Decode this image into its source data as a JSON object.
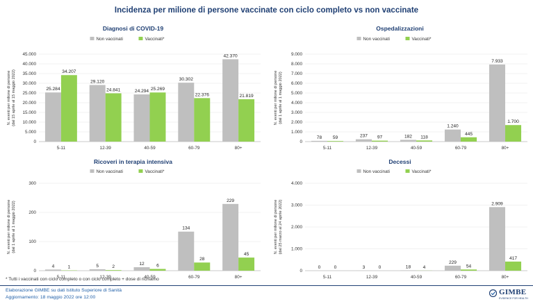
{
  "title": "Incidenza per milione di persone vaccinate con ciclo completo vs non vaccinate",
  "colors": {
    "non_vaccinati": "#bfbfbf",
    "vaccinati": "#92d050",
    "title": "#1f3f73",
    "footer": "#1f5fa8"
  },
  "footnote": "* Tutti i vaccinati con ciclo completo o con ciclo completo + dose di richiamo",
  "footer": {
    "credit": "Elaborazione GIMBE su dati Istituto Superiore di Sanità",
    "updated": "Aggiornamento: 18 maggio 2022 ore 12:00",
    "logo_name": "GIMBE",
    "logo_tagline": "EVIDENCE FOR HEALTH"
  },
  "chart_data": [
    {
      "type": "bar",
      "title": "Diagnosi di COVID-19",
      "ylabel": [
        "N. eventi per milione di persone",
        "(dal 15 aprile al 15 maggio 2022)"
      ],
      "categories": [
        "5-11",
        "12-39",
        "40-59",
        "60-79",
        "80+"
      ],
      "ylim": [
        0,
        45000
      ],
      "yticks": [
        0,
        5000,
        10000,
        15000,
        20000,
        25000,
        30000,
        35000,
        40000,
        45000
      ],
      "ytick_labels": [
        "0",
        "5.000",
        "10.000",
        "15.000",
        "20.000",
        "25.000",
        "30.000",
        "35.000",
        "40.000",
        "45.000"
      ],
      "legend_position": "top",
      "series": [
        {
          "name": "Non vaccinati",
          "values": [
            25284,
            29120,
            24294,
            30302,
            42370
          ],
          "labels": [
            "25.284",
            "29.120",
            "24.294",
            "30.302",
            "42.370"
          ]
        },
        {
          "name": "Vaccinati*",
          "values": [
            34207,
            24841,
            25269,
            22376,
            21819
          ],
          "labels": [
            "34.207",
            "24.841",
            "25.269",
            "22.376",
            "21.819"
          ]
        }
      ]
    },
    {
      "type": "bar",
      "title": "Ospedalizzazioni",
      "ylabel": [
        "N. eventi per milione di persone",
        "(dal 1 aprile al 1 maggio 2022)"
      ],
      "categories": [
        "5-11",
        "12-39",
        "40-59",
        "60-79",
        "80+"
      ],
      "ylim": [
        0,
        9000
      ],
      "yticks": [
        0,
        1000,
        2000,
        3000,
        4000,
        5000,
        6000,
        7000,
        8000,
        9000
      ],
      "ytick_labels": [
        "0",
        "1.000",
        "2.000",
        "3.000",
        "4.000",
        "5.000",
        "6.000",
        "7.000",
        "8.000",
        "9.000"
      ],
      "legend_position": "top",
      "series": [
        {
          "name": "Non vaccinati",
          "values": [
            78,
            237,
            182,
            1240,
            7933
          ],
          "labels": [
            "78",
            "237",
            "182",
            "1.240",
            "7.933"
          ]
        },
        {
          "name": "Vaccinati*",
          "values": [
            59,
            97,
            118,
            445,
            1700
          ],
          "labels": [
            "59",
            "97",
            "118",
            "445",
            "1.700"
          ]
        }
      ]
    },
    {
      "type": "bar",
      "title": "Ricoveri in terapia intensiva",
      "ylabel": [
        "N. eventi per milione di persone",
        "(dal 1 aprile al 1 maggio 2022)"
      ],
      "categories": [
        "5-11",
        "12-39",
        "40-59",
        "60-79",
        "80+"
      ],
      "ylim": [
        0,
        300
      ],
      "yticks": [
        0,
        100,
        200,
        300
      ],
      "ytick_labels": [
        "0",
        "100",
        "200",
        "300"
      ],
      "legend_position": "top",
      "series": [
        {
          "name": "Non vaccinati",
          "values": [
            4,
            5,
            12,
            134,
            229
          ],
          "labels": [
            "4",
            "5",
            "12",
            "134",
            "229"
          ]
        },
        {
          "name": "Vaccinati*",
          "values": [
            1,
            2,
            6,
            28,
            45
          ],
          "labels": [
            "1",
            "2",
            "6",
            "28",
            "45"
          ]
        }
      ]
    },
    {
      "type": "bar",
      "title": "Decessi",
      "ylabel": [
        "N. eventi per milione di persone",
        "(dal 25 marzo al 24 aprile 2022)"
      ],
      "categories": [
        "5-11",
        "12-39",
        "40-59",
        "60-79",
        "80+"
      ],
      "ylim": [
        0,
        4000
      ],
      "yticks": [
        0,
        1000,
        2000,
        3000,
        4000
      ],
      "ytick_labels": [
        "0",
        "1.000",
        "2.000",
        "3.000",
        "4.000"
      ],
      "legend_position": "top",
      "series": [
        {
          "name": "Non vaccinati",
          "values": [
            0,
            3,
            18,
            229,
            2909
          ],
          "labels": [
            "0",
            "3",
            "18",
            "229",
            "2.909"
          ]
        },
        {
          "name": "Vaccinati*",
          "values": [
            0,
            0,
            4,
            54,
            417
          ],
          "labels": [
            "0",
            "0",
            "4",
            "54",
            "417"
          ]
        }
      ]
    }
  ]
}
